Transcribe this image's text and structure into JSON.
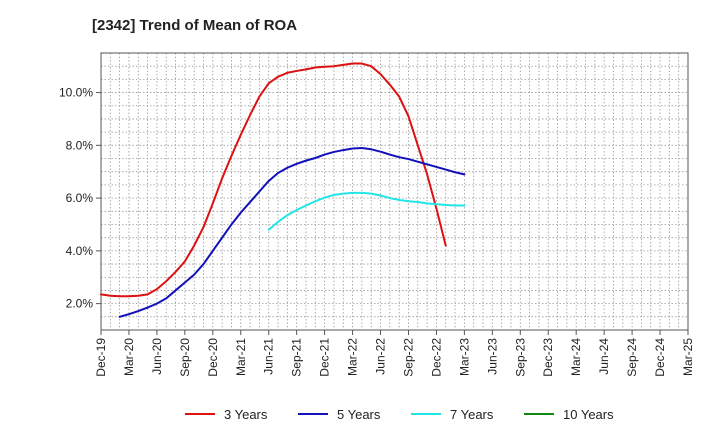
{
  "chart_data": {
    "type": "line",
    "title": "[2342]  Trend of Mean of ROA",
    "xlabel": "",
    "ylabel": "",
    "ylim": [
      1.0,
      11.5
    ],
    "y_ticks": [
      2.0,
      4.0,
      6.0,
      8.0,
      10.0
    ],
    "y_tick_labels": [
      "2.0%",
      "4.0%",
      "6.0%",
      "8.0%",
      "10.0%"
    ],
    "x_ticks": [
      "Dec-19",
      "Mar-20",
      "Jun-20",
      "Sep-20",
      "Dec-20",
      "Mar-21",
      "Jun-21",
      "Sep-21",
      "Dec-21",
      "Mar-22",
      "Jun-22",
      "Sep-22",
      "Dec-22",
      "Mar-23",
      "Jun-23",
      "Sep-23",
      "Dec-23",
      "Mar-24",
      "Jun-24",
      "Sep-24",
      "Dec-24",
      "Mar-25"
    ],
    "grid": true,
    "legend_position": "bottom",
    "series": [
      {
        "name": "3 Years",
        "color": "#dd1111",
        "start_index": 0,
        "values": [
          2.35,
          2.3,
          2.28,
          2.28,
          2.3,
          2.35,
          2.55,
          2.85,
          3.2,
          3.6,
          4.2,
          4.9,
          5.8,
          6.75,
          7.6,
          8.4,
          9.15,
          9.85,
          10.35,
          10.6,
          10.75,
          10.82,
          10.88,
          10.95,
          10.98,
          11.0,
          11.05,
          11.1,
          11.1,
          11.0,
          10.7,
          10.3,
          9.85,
          9.1,
          8.0,
          6.9,
          5.6,
          4.2
        ]
      },
      {
        "name": "5 Years",
        "color": "#1111bb",
        "start_index": 2,
        "values": [
          1.5,
          1.6,
          1.72,
          1.85,
          2.0,
          2.2,
          2.5,
          2.8,
          3.1,
          3.5,
          4.0,
          4.5,
          5.0,
          5.45,
          5.85,
          6.25,
          6.65,
          6.95,
          7.15,
          7.3,
          7.42,
          7.52,
          7.65,
          7.75,
          7.82,
          7.88,
          7.9,
          7.85,
          7.76,
          7.65,
          7.55,
          7.48,
          7.38,
          7.28,
          7.18,
          7.08,
          6.98,
          6.9
        ]
      },
      {
        "name": "7 Years",
        "color": "#22e5e5",
        "start_index": 18,
        "values": [
          4.8,
          5.1,
          5.35,
          5.55,
          5.72,
          5.88,
          6.02,
          6.12,
          6.17,
          6.2,
          6.2,
          6.17,
          6.1,
          6.0,
          5.93,
          5.88,
          5.85,
          5.8,
          5.77,
          5.74,
          5.72,
          5.72
        ]
      },
      {
        "name": "10 Years",
        "color": "#118811",
        "start_index": 0,
        "values": []
      }
    ]
  }
}
